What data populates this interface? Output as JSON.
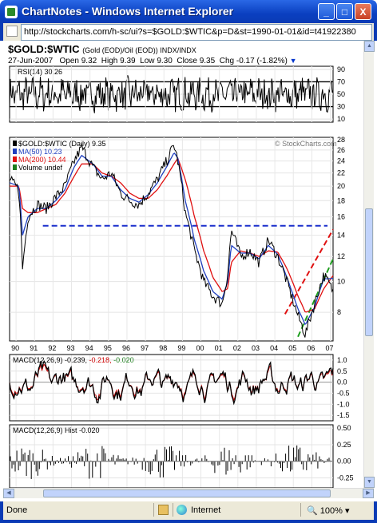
{
  "window": {
    "title": "ChartNotes - Windows Internet Explorer",
    "minimize": "_",
    "maximize": "□",
    "close": "X"
  },
  "address": {
    "url": "http://stockcharts.com/h-sc/ui?s=$GOLD:$WTIC&p=D&st=1990-01-01&id=t41922380"
  },
  "chart": {
    "symbol": "$GOLD:$WTIC",
    "symbol_desc": "(Gold (EOD)/Oil (EOD)) INDX/INDX",
    "date": "27-Jun-2007",
    "open_label": "Open",
    "open": "9.32",
    "high_label": "High",
    "high": "9.39",
    "low_label": "Low",
    "low": "9.30",
    "close_label": "Close",
    "close": "9.35",
    "chg_label": "Chg",
    "chg": "-0.17 (-1.82%)",
    "watermark": "© StockCharts.com",
    "rsi_label": "RSI(14) 30.26",
    "legend_main": "$GOLD:$WTIC (Daily) 9.35",
    "legend_ma50": "MA(50) 10.23",
    "legend_ma200": "MA(200) 10.44",
    "legend_volume": "Volume undef",
    "macd_label": "MACD(12,26,9) -0.239,",
    "macd_signal": "-0.218,",
    "macd_hist_val": "-0.020",
    "hist_label": "MACD(12,26,9) Hist -0.020",
    "colors": {
      "price": "#000000",
      "ma50": "#1f3fbf",
      "ma200": "#e01010",
      "support": "#1a2fcc",
      "channel_upper": "#e01010",
      "channel_lower": "#1e9e1e"
    }
  },
  "chart_data": [
    {
      "type": "line",
      "title": "RSI(14) 30.26",
      "y_ticks": [
        90,
        70,
        50,
        30,
        10
      ],
      "reference_lines": [
        70,
        30
      ],
      "ylim": [
        5,
        95
      ]
    },
    {
      "type": "line",
      "title": "$GOLD:$WTIC (Daily) 9.35",
      "scale": "log",
      "x_ticks": [
        "90",
        "91",
        "92",
        "93",
        "94",
        "95",
        "96",
        "97",
        "98",
        "99",
        "00",
        "01",
        "02",
        "03",
        "04",
        "05",
        "06",
        "07"
      ],
      "y_ticks": [
        28,
        26,
        24,
        22,
        20,
        18,
        16,
        14,
        12,
        10,
        8
      ],
      "ylim": [
        6.5,
        28.5
      ],
      "x": [
        1990.0,
        1990.5,
        1990.7,
        1991.0,
        1991.5,
        1992.0,
        1992.5,
        1993.0,
        1993.5,
        1993.9,
        1994.5,
        1995.0,
        1995.5,
        1996.0,
        1996.5,
        1997.0,
        1997.5,
        1998.0,
        1998.5,
        1998.9,
        1999.1,
        1999.5,
        2000.0,
        2000.5,
        2001.0,
        2001.5,
        2001.8,
        2002.0,
        2002.5,
        2003.0,
        2003.5,
        2004.0,
        2004.5,
        2005.0,
        2005.3,
        2005.6,
        2006.0,
        2006.5,
        2007.0,
        2007.5
      ],
      "series": [
        {
          "name": "$GOLD:$WTIC (Daily) 9.35",
          "values": [
            21.0,
            19.5,
            11.0,
            16.0,
            17.5,
            17.0,
            18.5,
            20.0,
            24.0,
            26.5,
            23.0,
            21.0,
            22.0,
            19.0,
            18.0,
            17.5,
            19.0,
            21.0,
            24.0,
            27.0,
            24.0,
            16.5,
            12.5,
            10.0,
            9.0,
            8.5,
            10.5,
            14.5,
            12.0,
            12.5,
            11.5,
            13.5,
            12.0,
            10.0,
            8.8,
            7.8,
            6.8,
            8.5,
            10.5,
            9.35
          ]
        },
        {
          "name": "MA(50) 10.23",
          "values": [
            20.5,
            20.0,
            14.0,
            16.0,
            17.0,
            17.0,
            18.0,
            19.5,
            23.0,
            25.0,
            23.5,
            21.5,
            21.5,
            19.5,
            18.3,
            17.8,
            18.8,
            20.5,
            23.0,
            25.5,
            24.5,
            18.0,
            13.5,
            10.8,
            9.3,
            8.8,
            10.0,
            13.0,
            12.3,
            12.3,
            11.8,
            13.0,
            12.2,
            10.3,
            9.2,
            8.2,
            7.3,
            8.3,
            10.2,
            10.23
          ]
        },
        {
          "name": "MA(200) 10.44",
          "values": [
            20.0,
            20.0,
            17.0,
            16.5,
            16.5,
            17.0,
            17.5,
            19.0,
            21.5,
            23.5,
            23.5,
            22.0,
            21.5,
            20.5,
            19.0,
            18.3,
            18.3,
            19.5,
            21.5,
            23.5,
            24.5,
            21.0,
            16.0,
            12.5,
            10.3,
            9.3,
            9.5,
            11.5,
            12.5,
            12.3,
            12.0,
            12.5,
            12.4,
            11.0,
            10.0,
            9.0,
            8.0,
            8.2,
            9.5,
            10.44
          ]
        }
      ],
      "annotations": [
        "horizontal support line near 15",
        "rising channel 2005-2007"
      ]
    },
    {
      "type": "line",
      "title": "MACD(12,26,9) -0.239, -0.218, -0.020",
      "y_ticks": [
        1.0,
        0.5,
        0.0,
        -0.5,
        -1.0,
        -1.5
      ],
      "ylim": [
        -1.75,
        1.25
      ]
    },
    {
      "type": "bar",
      "title": "MACD(12,26,9) Hist -0.020",
      "y_ticks": [
        0.5,
        0.25,
        0.0,
        -0.25
      ],
      "ylim": [
        -0.4,
        0.55
      ]
    }
  ],
  "status": {
    "done": "Done",
    "zone": "Internet",
    "zoom": "100%"
  }
}
